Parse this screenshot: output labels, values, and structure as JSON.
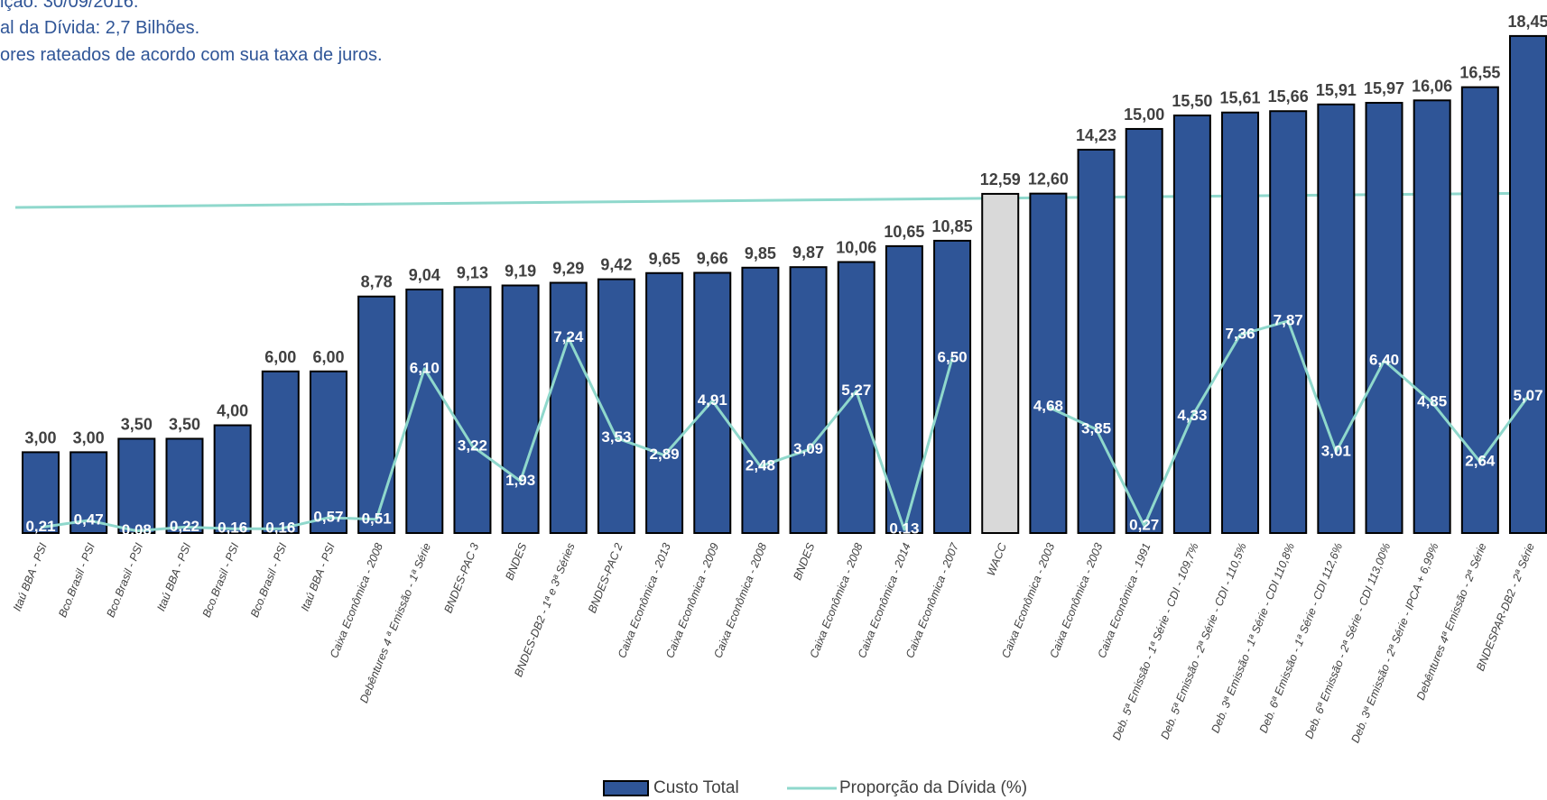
{
  "chart_data": {
    "type": "bar",
    "notes": [
      "ição: 30/09/2016.",
      "al da Dívida: 2,7 Bilhões.",
      "ores rateados de acordo com sua taxa de juros."
    ],
    "categories": [
      "Itaú BBA - PSI",
      "Bco.Brasil - PSI",
      "Bco.Brasil - PSI",
      "Itaú BBA - PSI",
      "Bco.Brasil - PSI",
      "Bco.Brasil - PSI",
      "Itaú BBA - PSI",
      "Caixa Econômica - 2008",
      "Debêntures 4 ª Emissão - 1ª Série",
      "BNDES-PAC 3",
      "BNDES",
      "BNDES-DB2 - 1ª e 3ª Séries",
      "BNDES-PAC 2",
      "Caixa Econômica - 2013",
      "Caixa Econômica - 2009",
      "Caixa Econômica - 2008",
      "BNDES",
      "Caixa Econômica - 2008",
      "Caixa Econômica - 2014",
      "Caixa Econômica - 2007",
      "WACC",
      "Caixa Econômica - 2003",
      "Caixa Econômica - 2003",
      "Caixa Econômica - 1991",
      "Deb. 5ª Emissão - 1ª Série - CDI - 109,7%",
      "Deb. 5ª Emissão - 2ª Série - CDI - 110,5%",
      "Deb. 3ª Emissão - 1ª Série - CDI 110,8%",
      "Deb. 6ª Emissão - 1ª Série - CDI 112,6%",
      "Deb. 6ª Emissão - 2ª Série - CDI 113,00%",
      "Deb. 3ª Emissão - 2ª Série - IPCA + 6,99%",
      "Debêntures 4ª Emissão - 2ª Série",
      "BNDESPAR-DB2 - 2ª Série"
    ],
    "series": [
      {
        "name": "Custo Total",
        "type": "bar",
        "color": "#2f5597",
        "colors": [
          "#2f5597",
          "#2f5597",
          "#2f5597",
          "#2f5597",
          "#2f5597",
          "#2f5597",
          "#2f5597",
          "#2f5597",
          "#2f5597",
          "#2f5597",
          "#2f5597",
          "#2f5597",
          "#2f5597",
          "#2f5597",
          "#2f5597",
          "#2f5597",
          "#2f5597",
          "#2f5597",
          "#2f5597",
          "#2f5597",
          "#d9d9d9",
          "#2f5597",
          "#2f5597",
          "#2f5597",
          "#2f5597",
          "#2f5597",
          "#2f5597",
          "#2f5597",
          "#2f5597",
          "#2f5597",
          "#2f5597",
          "#2f5597"
        ],
        "values": [
          3.0,
          3.0,
          3.5,
          3.5,
          4.0,
          6.0,
          6.0,
          8.78,
          9.04,
          9.13,
          9.19,
          9.29,
          9.42,
          9.65,
          9.66,
          9.85,
          9.87,
          10.06,
          10.65,
          10.85,
          12.59,
          12.6,
          14.23,
          15.0,
          15.5,
          15.61,
          15.66,
          15.91,
          15.97,
          16.06,
          16.55,
          18.45
        ],
        "value_labels": [
          "3,00",
          "3,00",
          "3,50",
          "3,50",
          "4,00",
          "6,00",
          "6,00",
          "8,78",
          "9,04",
          "9,13",
          "9,19",
          "9,29",
          "9,42",
          "9,65",
          "9,66",
          "9,85",
          "9,87",
          "10,06",
          "10,65",
          "10,85",
          "12,59",
          "12,60",
          "14,23",
          "15,00",
          "15,50",
          "15,61",
          "15,66",
          "15,91",
          "15,97",
          "16,06",
          "16,55",
          "18,45"
        ]
      },
      {
        "name": "Proporção da Dívida (%)",
        "type": "line",
        "color": "#8fd8cc",
        "values": [
          0.21,
          0.47,
          0.08,
          0.22,
          0.16,
          0.16,
          0.57,
          0.51,
          6.1,
          3.22,
          1.93,
          7.24,
          3.53,
          2.89,
          4.91,
          2.48,
          3.09,
          5.27,
          0.13,
          6.5,
          null,
          4.68,
          3.85,
          0.27,
          4.33,
          7.36,
          7.87,
          3.01,
          6.4,
          4.85,
          2.64,
          5.07
        ],
        "value_labels": [
          "0,21",
          "0,47",
          "0,08",
          "0,22",
          "0,16",
          "0,16",
          "0,57",
          "0,51",
          "6,10",
          "3,22",
          "1,93",
          "7,24",
          "3,53",
          "2,89",
          "4,91",
          "2,48",
          "3,09",
          "5,27",
          "0,13",
          "6,50",
          null,
          "4,68",
          "3,85",
          "0,27",
          "4,33",
          "7,36",
          "7,87",
          "3,01",
          "6,40",
          "4,85",
          "2,64",
          "5,07"
        ]
      }
    ],
    "ylim": [
      0,
      20
    ],
    "legend": "bottom"
  }
}
